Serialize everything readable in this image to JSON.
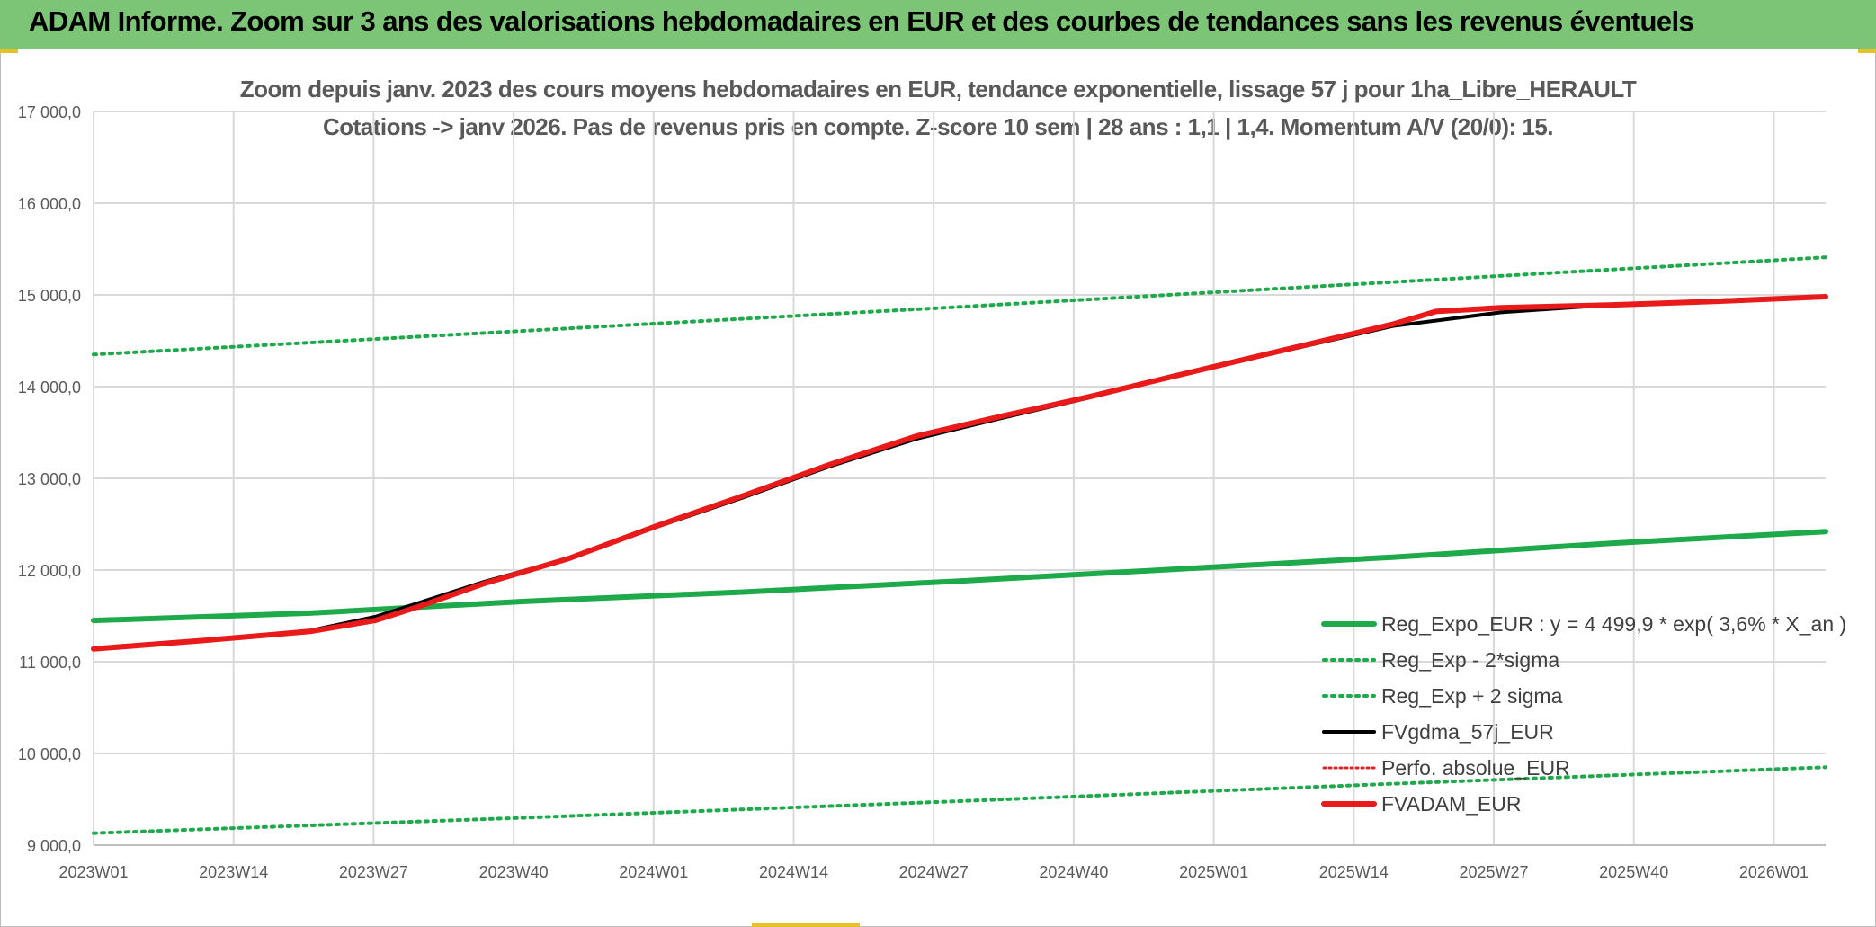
{
  "banner": {
    "title": "ADAM Informe. Zoom sur 3 ans des valorisations hebdomadaires en EUR et des courbes de tendances sans les revenus éventuels"
  },
  "colors": {
    "banner_bg": "#7cc576",
    "expo": "#1eaa4a",
    "sigma": "#1eaa4a",
    "fv57": "#000000",
    "perfo": "#e62020",
    "adam": "#e81a1a",
    "grid": "#d9d9d9"
  },
  "chart_data": {
    "type": "line",
    "title": "Zoom depuis janv. 2023 des cours moyens hebdomadaires en EUR, tendance exponentielle, lissage 57 j pour 1ha_Libre_HERAULT",
    "subtitle": "Cotations -> janv 2026. Pas de revenus pris en compte. Z-score 10 sem | 28 ans : 1,1 | 1,4. Momentum A/V (20/0): 15.",
    "xlabel": "",
    "ylabel": "",
    "x_ticks": [
      "2023W01",
      "2023W14",
      "2023W27",
      "2023W40",
      "2024W01",
      "2024W14",
      "2024W27",
      "2024W40",
      "2025W01",
      "2025W14",
      "2025W27",
      "2025W40",
      "2026W01"
    ],
    "y_ticks": [
      "9 000,0",
      "10 000,0",
      "11 000,0",
      "12 000,0",
      "13 000,0",
      "14 000,0",
      "15 000,0",
      "16 000,0",
      "17 000,0"
    ],
    "ylim": [
      9000,
      17000
    ],
    "x_range_weeks": [
      0,
      160
    ],
    "legend_position": "right",
    "series": [
      {
        "name": "Reg_Expo_EUR : y = 4 499,9 * exp( 3,6% *  X_an )",
        "style": "solid-thick",
        "x": [
          0,
          20,
          40,
          60,
          80,
          100,
          120,
          140,
          160
        ],
        "values": [
          11450,
          11530,
          11660,
          11760,
          11880,
          12010,
          12140,
          12290,
          12420
        ]
      },
      {
        "name": "Reg_Exp - 2*sigma",
        "style": "dotted",
        "x": [
          0,
          40,
          80,
          120,
          160
        ],
        "values": [
          9130,
          9300,
          9480,
          9670,
          9850
        ]
      },
      {
        "name": "Reg_Exp + 2 sigma",
        "style": "dotted",
        "x": [
          0,
          40,
          80,
          120,
          160
        ],
        "values": [
          14350,
          14610,
          14870,
          15140,
          15410
        ]
      },
      {
        "name": "FVgdma_57j_EUR",
        "style": "solid",
        "x": [
          0,
          10,
          20,
          26,
          30,
          36,
          44,
          52,
          60,
          68,
          76,
          84,
          92,
          100,
          110,
          120,
          130,
          140,
          150,
          160
        ],
        "values": [
          11140,
          11230,
          11340,
          11490,
          11640,
          11870,
          12130,
          12470,
          12790,
          13130,
          13430,
          13660,
          13880,
          14120,
          14390,
          14660,
          14810,
          14890,
          14940,
          14980
        ]
      },
      {
        "name": "Perfo. absolue_EUR",
        "style": "dotted-thin",
        "x": [],
        "values": []
      },
      {
        "name": "FVADAM_EUR",
        "style": "solid-thick",
        "x": [
          0,
          10,
          20,
          26,
          30,
          36,
          44,
          52,
          60,
          68,
          76,
          84,
          92,
          100,
          110,
          120,
          124,
          130,
          140,
          150,
          160
        ],
        "values": [
          11140,
          11230,
          11330,
          11450,
          11600,
          11850,
          12130,
          12480,
          12810,
          13150,
          13460,
          13680,
          13890,
          14120,
          14400,
          14680,
          14820,
          14860,
          14890,
          14930,
          14980
        ]
      }
    ]
  }
}
